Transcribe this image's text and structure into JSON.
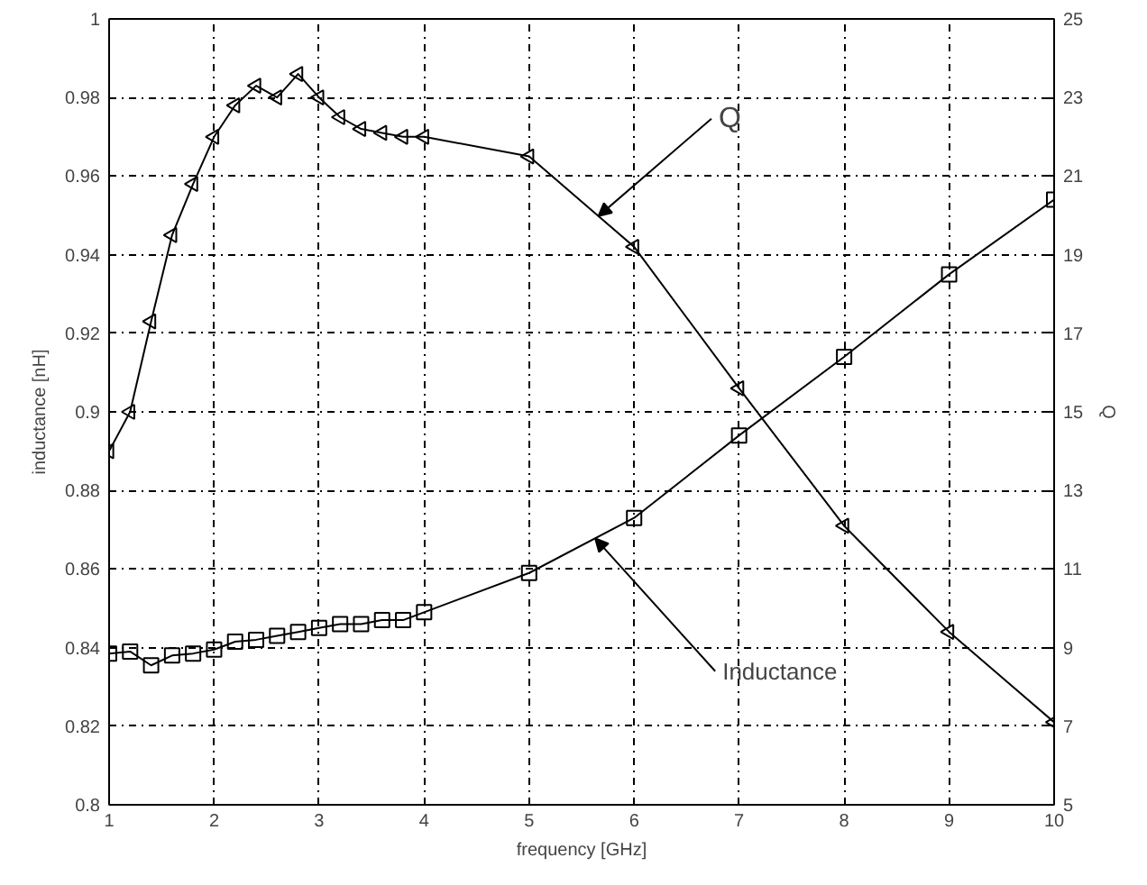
{
  "chart_data": {
    "type": "line",
    "xlabel": "frequency [GHz]",
    "ylabel": "inductance [nH]",
    "y2label": "Q",
    "x": [
      1,
      1.2,
      1.4,
      1.6,
      1.8,
      2.0,
      2.2,
      2.4,
      2.6,
      2.8,
      3.0,
      3.2,
      3.4,
      3.6,
      3.8,
      4,
      5,
      6,
      7,
      8,
      9,
      10
    ],
    "series": [
      {
        "color": "#000000",
        "marker": "square",
        "values": [
          0.8385,
          0.839,
          0.8355,
          0.838,
          0.8385,
          0.8395,
          0.8415,
          0.842,
          0.843,
          0.844,
          0.845,
          0.846,
          0.846,
          0.847,
          0.847,
          0.849,
          0.859,
          0.873,
          0.894,
          0.914,
          0.935,
          0.954
        ]
      },
      {
        "color": "#000000",
        "marker": "triangle",
        "axis": "y2",
        "values": [
          14.0,
          15.0,
          17.3,
          19.5,
          20.8,
          22.0,
          22.8,
          23.3,
          23.0,
          23.6,
          23.0,
          22.5,
          22.2,
          22.1,
          22.0,
          22.0,
          21.5,
          19.2,
          15.6,
          12.1,
          9.4,
          7.1
        ]
      }
    ],
    "xlim": [
      1,
      10
    ],
    "xticks": [
      1,
      2,
      3,
      4,
      5,
      6,
      7,
      8,
      9,
      10
    ],
    "ylim": [
      0.8,
      1
    ],
    "yticks": [
      0.8,
      0.82,
      0.84,
      0.86,
      0.88,
      0.9,
      0.92,
      0.94,
      0.96,
      0.98,
      1
    ],
    "y2lim": [
      5,
      25
    ],
    "y2ticks": [
      5,
      7,
      9,
      11,
      13,
      15,
      17,
      19,
      21,
      23,
      25
    ],
    "annotations": [
      {
        "text": "Q",
        "x": 5.66,
        "y": 0.9498
      },
      {
        "text": "Inductance",
        "x": 5.63,
        "y": 0.8678
      }
    ],
    "grid": true,
    "line_style": "solid"
  }
}
